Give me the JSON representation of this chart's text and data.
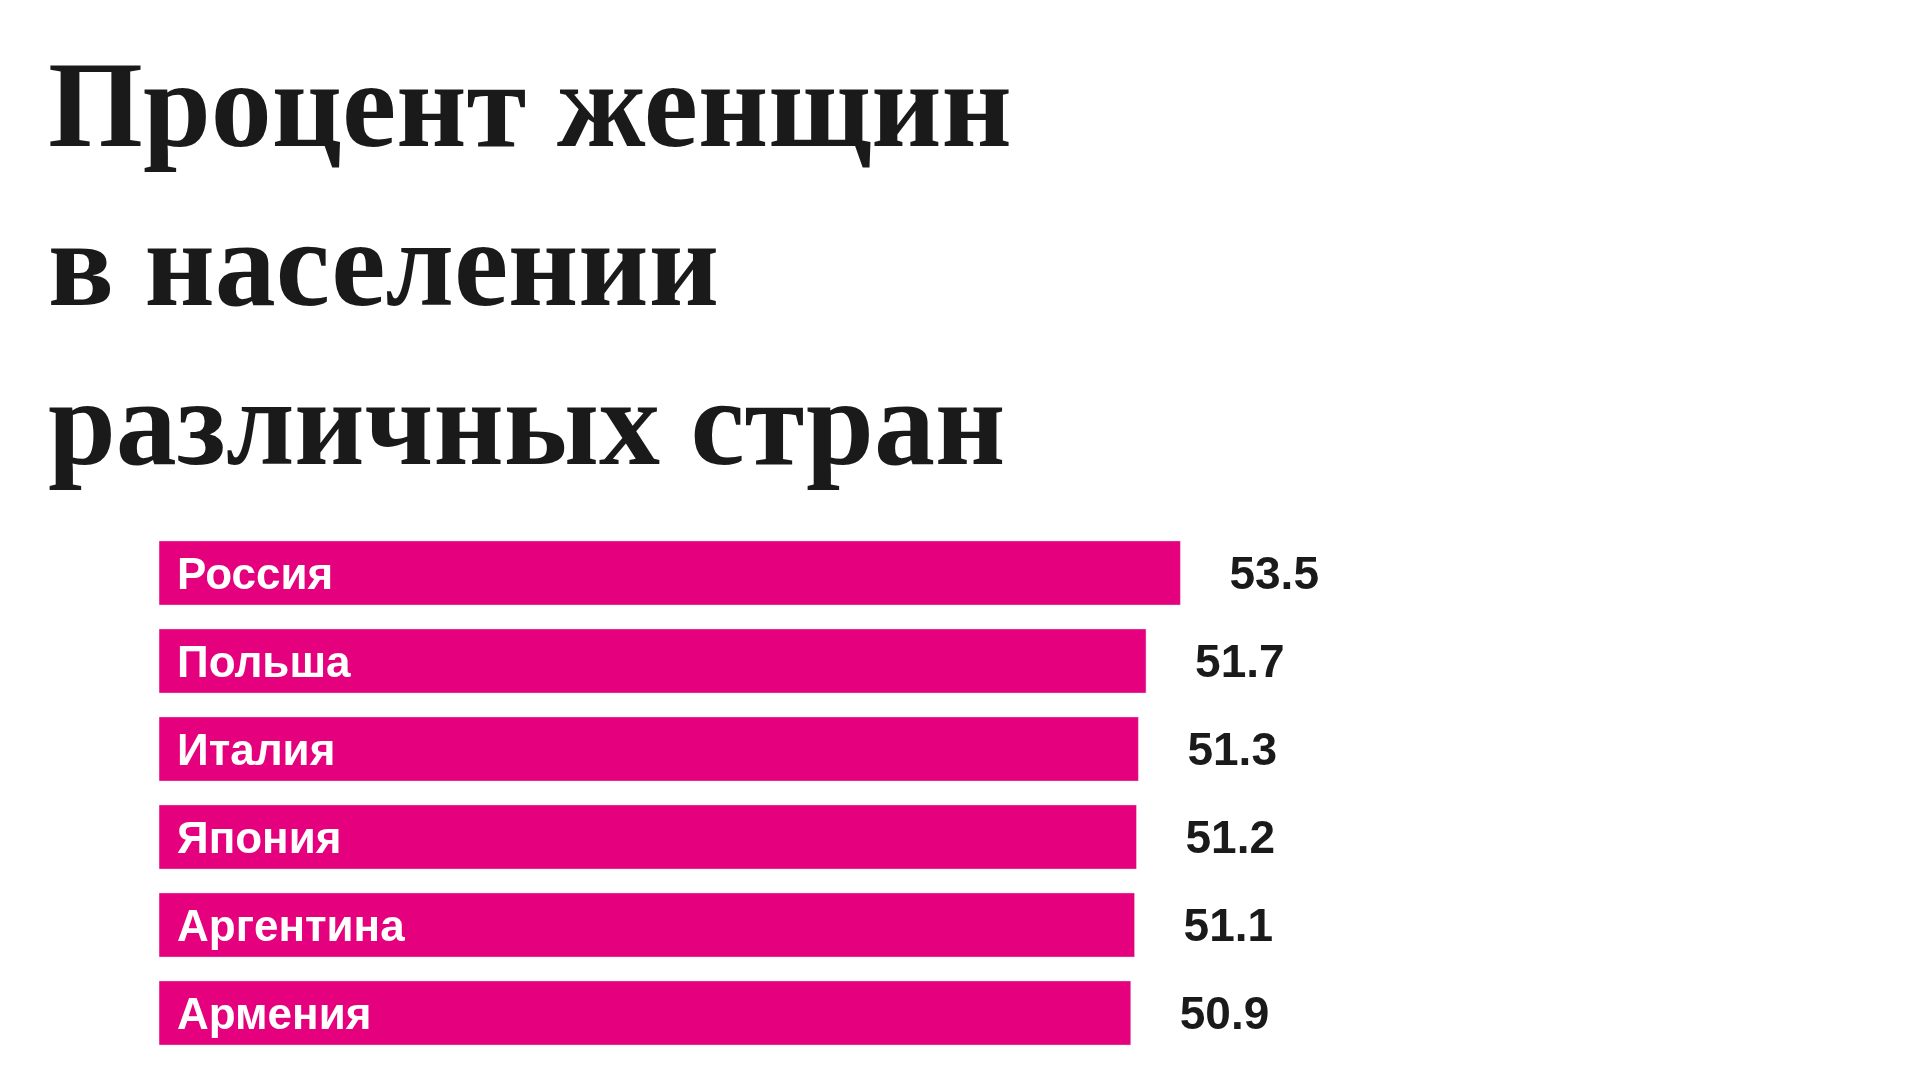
{
  "chart_data": {
    "type": "bar",
    "orientation": "horizontal",
    "title": "Процент женщин\nв населении\nразличных стран",
    "categories": [
      "Россия",
      "Польша",
      "Италия",
      "Япония",
      "Аргентина",
      "Армения"
    ],
    "values": [
      53.5,
      51.7,
      51.3,
      51.2,
      51.1,
      50.9
    ],
    "color": "#e5007d",
    "tick_labels": false,
    "data_labels": true
  }
}
